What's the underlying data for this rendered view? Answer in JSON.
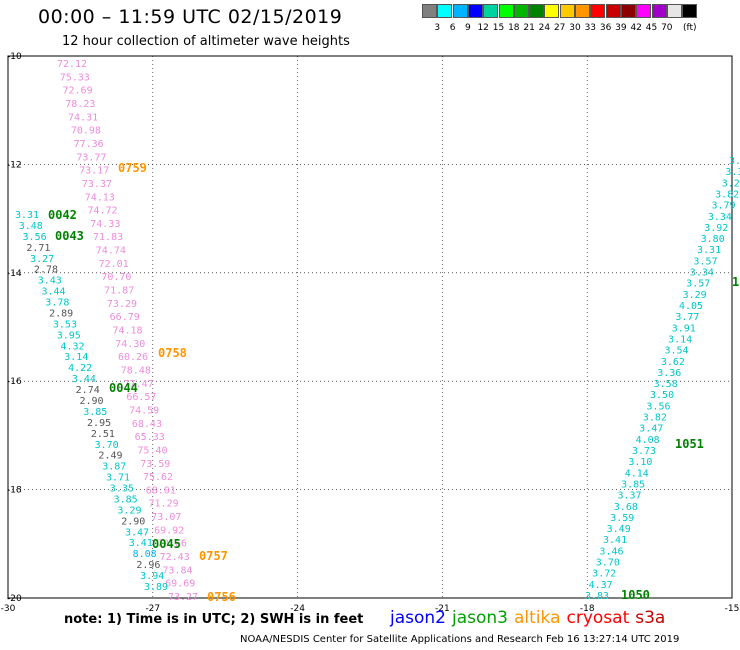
{
  "header": {
    "title": "00:00 – 11:59 UTC 02/15/2019",
    "subtitle": "12 hour collection of altimeter wave heights"
  },
  "legend": {
    "colors": [
      "#808080",
      "#00ffff",
      "#00b4ff",
      "#0000ff",
      "#00d2a0",
      "#00ff00",
      "#00b400",
      "#008200",
      "#ffff00",
      "#ffc800",
      "#ff9600",
      "#ff0000",
      "#c80000",
      "#8c0000",
      "#ff00ff",
      "#a000c8",
      "#e6e6e6",
      "#000000"
    ],
    "labels": [
      "3",
      "6",
      "9",
      "12",
      "15",
      "18",
      "21",
      "24",
      "27",
      "30",
      "33",
      "36",
      "39",
      "42",
      "45",
      "70",
      "(ft)"
    ]
  },
  "map": {
    "y_ticks": [
      "-10",
      "-12",
      "-14",
      "-16",
      "-18",
      "-20"
    ],
    "x_ticks": [
      "-30",
      "-27",
      "-24",
      "-21",
      "-18",
      "-15"
    ],
    "lon_range": [
      -30,
      -15
    ],
    "lat_range": [
      -20,
      -10
    ]
  },
  "tracks": {
    "pink_text": [
      "72.12",
      "75.33",
      "72.69",
      "78.23",
      "74.31",
      "70.98",
      "77.36",
      "73.77",
      "73.17",
      "73.37",
      "74.13",
      "74.72",
      "74.33",
      "71.83",
      "74.74",
      "72.01",
      "70.70",
      "71.87",
      "73.29",
      "66.79",
      "74.18",
      "74.30",
      "60.26",
      "78.48",
      "77.47",
      "66.57",
      "74.59",
      "68.43",
      "65.33",
      "75.40",
      "73.59",
      "75.62",
      "68.01",
      "71.29",
      "73.07",
      "69.92",
      "70.66",
      "72.43",
      "73.84",
      "69.69",
      "73.27"
    ],
    "left_track": [
      {
        "v": "3.31",
        "c": "#00c8c8"
      },
      {
        "v": "3.48",
        "c": "#00c8c8"
      },
      {
        "v": "3.56",
        "c": "#00c8c8"
      },
      {
        "v": "2.71",
        "c": "#555555"
      },
      {
        "v": "3.27",
        "c": "#00c8c8"
      },
      {
        "v": "2.78",
        "c": "#555555"
      },
      {
        "v": "3.43",
        "c": "#00c8c8"
      },
      {
        "v": "3.44",
        "c": "#00c8c8"
      },
      {
        "v": "3.78",
        "c": "#00c8c8"
      },
      {
        "v": "2.89",
        "c": "#555555"
      },
      {
        "v": "3.53",
        "c": "#00c8c8"
      },
      {
        "v": "3.95",
        "c": "#00c8c8"
      },
      {
        "v": "4.32",
        "c": "#00c8c8"
      },
      {
        "v": "3.14",
        "c": "#00c8c8"
      },
      {
        "v": "4.22",
        "c": "#00c8c8"
      },
      {
        "v": "3.44",
        "c": "#00c8c8"
      },
      {
        "v": "2.74",
        "c": "#555555"
      },
      {
        "v": "2.90",
        "c": "#555555"
      },
      {
        "v": "3.85",
        "c": "#00c8c8"
      },
      {
        "v": "2.95",
        "c": "#555555"
      },
      {
        "v": "2.51",
        "c": "#555555"
      },
      {
        "v": "3.70",
        "c": "#00c8c8"
      },
      {
        "v": "2.49",
        "c": "#555555"
      },
      {
        "v": "3.87",
        "c": "#00c8c8"
      },
      {
        "v": "3.71",
        "c": "#00c8c8"
      },
      {
        "v": "3.35",
        "c": "#00c8c8"
      },
      {
        "v": "3.85",
        "c": "#00c8c8"
      },
      {
        "v": "3.29",
        "c": "#00c8c8"
      },
      {
        "v": "2.90",
        "c": "#555555"
      },
      {
        "v": "3.47",
        "c": "#00c8c8"
      },
      {
        "v": "3.41",
        "c": "#00c8c8"
      },
      {
        "v": "8.08",
        "c": "#00b4ff"
      },
      {
        "v": "2.96",
        "c": "#555555"
      },
      {
        "v": "3.94",
        "c": "#00c8c8"
      },
      {
        "v": "3.89",
        "c": "#00c8c8"
      }
    ],
    "right_track": [
      "3.83",
      "4.37",
      "3.72",
      "3.70",
      "3.46",
      "3.41",
      "3.49",
      "3.59",
      "3.68",
      "3.37",
      "3.85",
      "4.14",
      "3.10",
      "3.73",
      "4.08",
      "3.47",
      "3.82",
      "3.56",
      "3.50",
      "3.58",
      "3.36",
      "3.62",
      "3.54",
      "3.14",
      "3.91",
      "3.77",
      "4.05",
      "3.29",
      "3.57",
      "3.34",
      "3.57",
      "3.31",
      "3.80",
      "3.92",
      "3.34",
      "3.79",
      "3.82",
      "3.2",
      "3.3",
      "3.1"
    ],
    "time_labels": [
      {
        "t": "0759",
        "c": "#ff9600"
      },
      {
        "t": "0042",
        "c": "#008200"
      },
      {
        "t": "0043",
        "c": "#008200"
      },
      {
        "t": "0758",
        "c": "#ff9600"
      },
      {
        "t": "0044",
        "c": "#008200"
      },
      {
        "t": "0045",
        "c": "#008200"
      },
      {
        "t": "0757",
        "c": "#ff9600"
      },
      {
        "t": "0756",
        "c": "#ff9600"
      },
      {
        "t": "1051",
        "c": "#008200"
      },
      {
        "t": "1050",
        "c": "#008200"
      },
      {
        "t": "1",
        "c": "#008200"
      }
    ]
  },
  "footer": {
    "note": "note:  1) Time is in UTC;  2) SWH is in feet",
    "satellites": [
      {
        "name": "jason2",
        "color": "#0000ff"
      },
      {
        "name": "jason3",
        "color": "#00a000"
      },
      {
        "name": "altika",
        "color": "#ff9600"
      },
      {
        "name": "cryosat",
        "color": "#ff0000"
      },
      {
        "name": "s3a",
        "color": "#c80000"
      }
    ],
    "credit": "NOAA/NESDIS Center for Satellite Applications and Research     Feb 16 13:27:14 UTC 2019"
  }
}
